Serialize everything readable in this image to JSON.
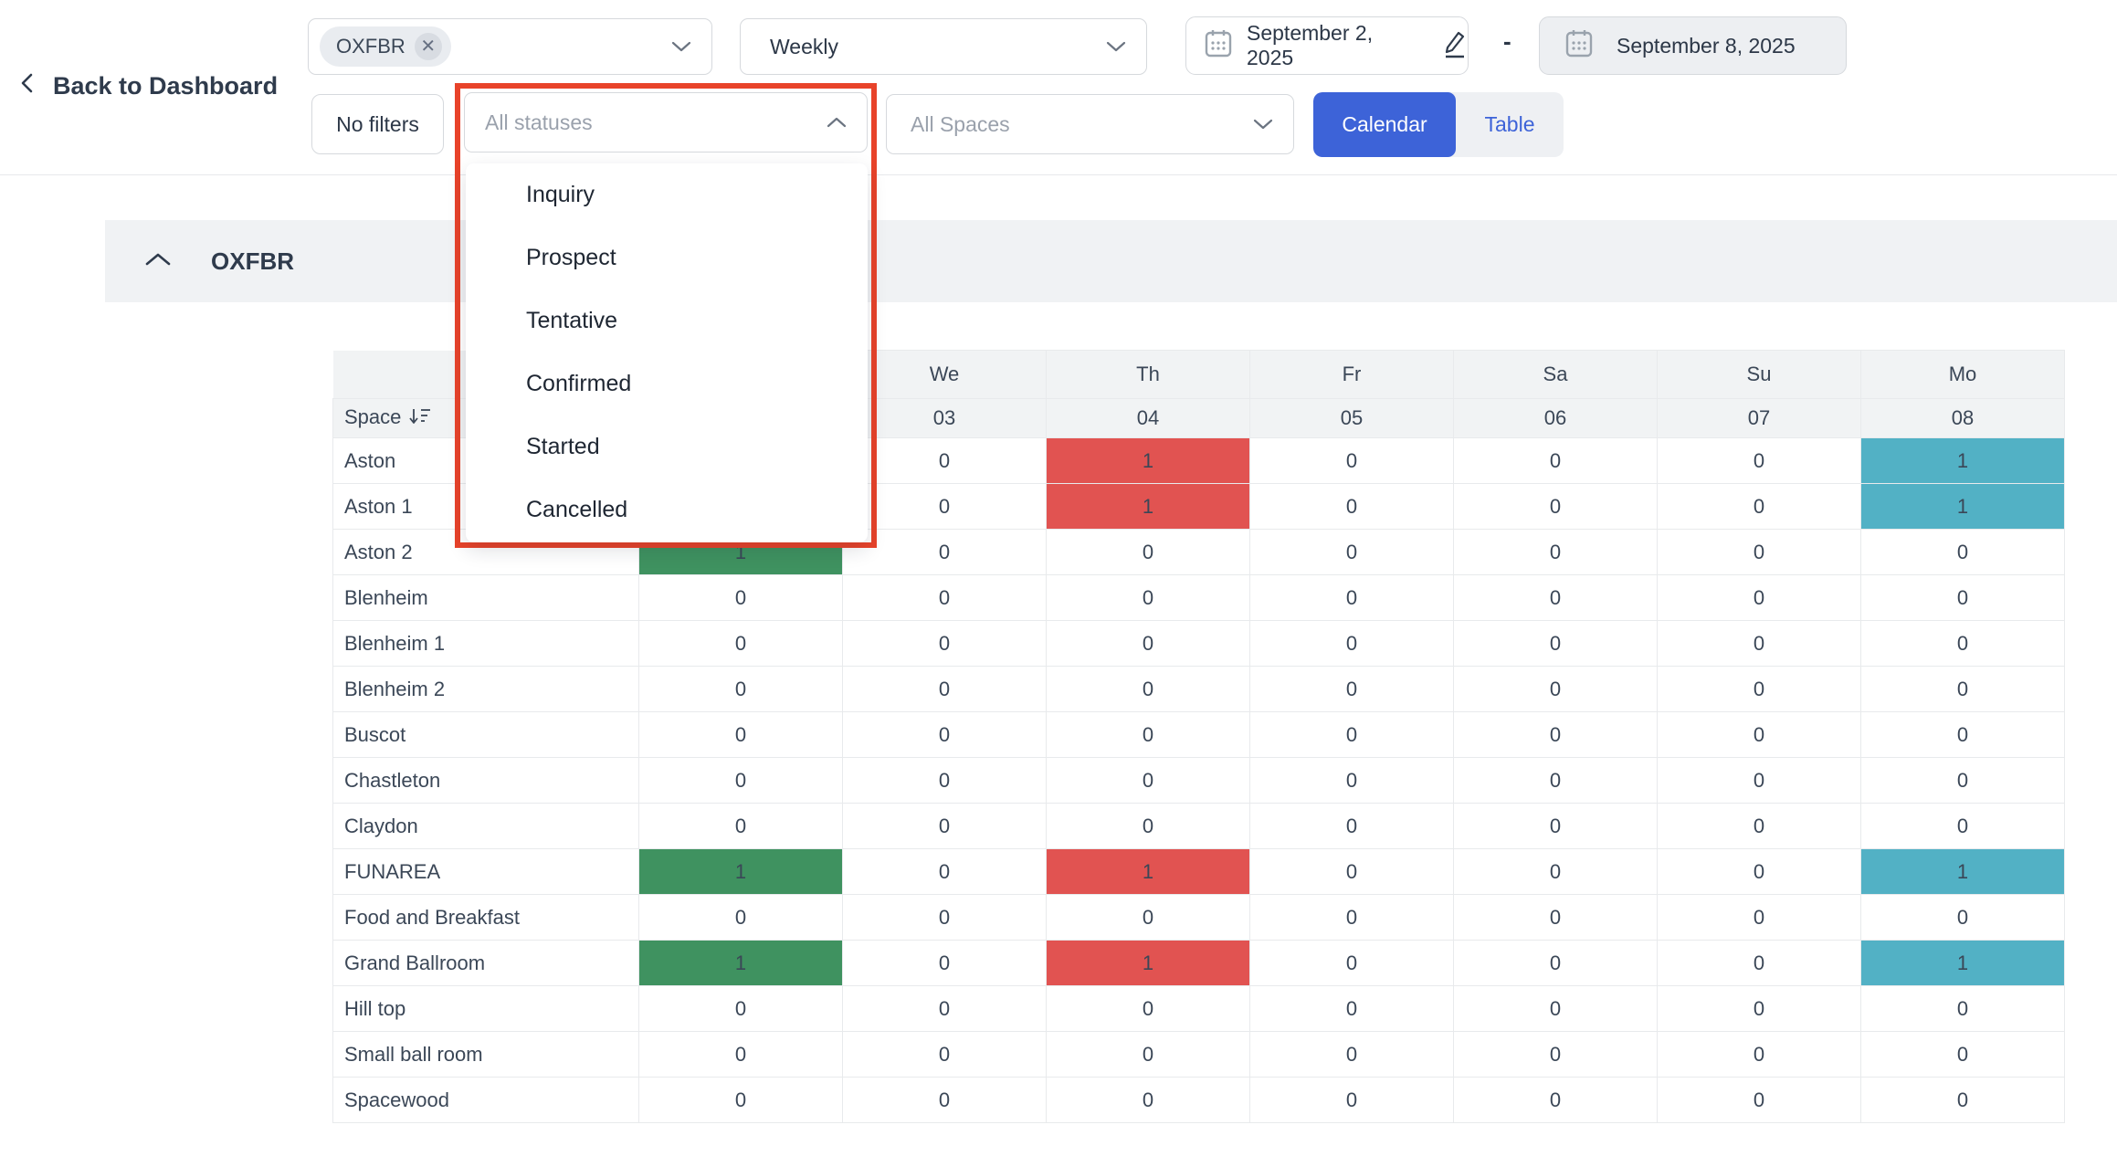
{
  "colors": {
    "accent_blue": "#3d63d8",
    "highlight_red": "#e8432a",
    "cell_red": "#e15351",
    "cell_green": "#3f9260",
    "cell_teal": "#52b1c5",
    "header_bg": "#f1f3f4"
  },
  "top_bar": {
    "back_label": "Back to Dashboard",
    "property_select": {
      "chip": "OXFBR"
    },
    "period_select": {
      "value": "Weekly"
    },
    "date_from": "September 2, 2025",
    "date_separator": "-",
    "date_to": "September 8, 2025",
    "filters_button": "No filters",
    "status_select": {
      "placeholder": "All statuses",
      "options": [
        "Inquiry",
        "Prospect",
        "Tentative",
        "Confirmed",
        "Started",
        "Cancelled"
      ]
    },
    "spaces_select": {
      "placeholder": "All Spaces"
    },
    "view_toggle": {
      "calendar": "Calendar",
      "table": "Table",
      "active": "Calendar"
    }
  },
  "section": {
    "title": "OXFBR"
  },
  "table": {
    "space_header": "Space",
    "day_names": [
      null,
      "We",
      "Th",
      "Fr",
      "Sa",
      "Su",
      "Mo"
    ],
    "day_dates": [
      null,
      "03",
      "04",
      "05",
      "06",
      "07",
      "08"
    ],
    "rows": [
      {
        "name": "Aston",
        "values": [
          null,
          "0",
          "1",
          "0",
          "0",
          "0",
          "1"
        ],
        "colors": [
          null,
          null,
          "red",
          null,
          null,
          null,
          "teal"
        ]
      },
      {
        "name": "Aston 1",
        "values": [
          null,
          "0",
          "1",
          "0",
          "0",
          "0",
          "1"
        ],
        "colors": [
          null,
          null,
          "red",
          null,
          null,
          null,
          "teal"
        ]
      },
      {
        "name": "Aston 2",
        "values": [
          "1",
          "0",
          "0",
          "0",
          "0",
          "0",
          "0"
        ],
        "colors": [
          "green",
          null,
          null,
          null,
          null,
          null,
          null
        ]
      },
      {
        "name": "Blenheim",
        "values": [
          "0",
          "0",
          "0",
          "0",
          "0",
          "0",
          "0"
        ],
        "colors": [
          null,
          null,
          null,
          null,
          null,
          null,
          null
        ]
      },
      {
        "name": "Blenheim 1",
        "values": [
          "0",
          "0",
          "0",
          "0",
          "0",
          "0",
          "0"
        ],
        "colors": [
          null,
          null,
          null,
          null,
          null,
          null,
          null
        ]
      },
      {
        "name": "Blenheim 2",
        "values": [
          "0",
          "0",
          "0",
          "0",
          "0",
          "0",
          "0"
        ],
        "colors": [
          null,
          null,
          null,
          null,
          null,
          null,
          null
        ]
      },
      {
        "name": "Buscot",
        "values": [
          "0",
          "0",
          "0",
          "0",
          "0",
          "0",
          "0"
        ],
        "colors": [
          null,
          null,
          null,
          null,
          null,
          null,
          null
        ]
      },
      {
        "name": "Chastleton",
        "values": [
          "0",
          "0",
          "0",
          "0",
          "0",
          "0",
          "0"
        ],
        "colors": [
          null,
          null,
          null,
          null,
          null,
          null,
          null
        ]
      },
      {
        "name": "Claydon",
        "values": [
          "0",
          "0",
          "0",
          "0",
          "0",
          "0",
          "0"
        ],
        "colors": [
          null,
          null,
          null,
          null,
          null,
          null,
          null
        ]
      },
      {
        "name": "FUNAREA",
        "values": [
          "1",
          "0",
          "1",
          "0",
          "0",
          "0",
          "1"
        ],
        "colors": [
          "green",
          null,
          "red",
          null,
          null,
          null,
          "teal"
        ]
      },
      {
        "name": "Food and Breakfast",
        "values": [
          "0",
          "0",
          "0",
          "0",
          "0",
          "0",
          "0"
        ],
        "colors": [
          null,
          null,
          null,
          null,
          null,
          null,
          null
        ]
      },
      {
        "name": "Grand Ballroom",
        "values": [
          "1",
          "0",
          "1",
          "0",
          "0",
          "0",
          "1"
        ],
        "colors": [
          "green",
          null,
          "red",
          null,
          null,
          null,
          "teal"
        ]
      },
      {
        "name": "Hill top",
        "values": [
          "0",
          "0",
          "0",
          "0",
          "0",
          "0",
          "0"
        ],
        "colors": [
          null,
          null,
          null,
          null,
          null,
          null,
          null
        ]
      },
      {
        "name": "Small ball room",
        "values": [
          "0",
          "0",
          "0",
          "0",
          "0",
          "0",
          "0"
        ],
        "colors": [
          null,
          null,
          null,
          null,
          null,
          null,
          null
        ]
      },
      {
        "name": "Spacewood",
        "values": [
          "0",
          "0",
          "0",
          "0",
          "0",
          "0",
          "0"
        ],
        "colors": [
          null,
          null,
          null,
          null,
          null,
          null,
          null
        ]
      }
    ]
  }
}
